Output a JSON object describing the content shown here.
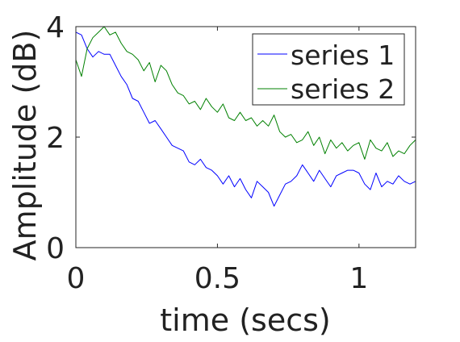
{
  "chart_data": {
    "type": "line",
    "title": "",
    "xlabel": "time (secs)",
    "ylabel": "Amplitude (dB)",
    "xlim": [
      0,
      1.2
    ],
    "ylim": [
      0,
      4
    ],
    "xticks": [
      0,
      0.5,
      1
    ],
    "xtick_labels": [
      "0",
      "0.5",
      "1"
    ],
    "yticks": [
      0,
      2,
      4
    ],
    "ytick_labels": [
      "0",
      "2",
      "4"
    ],
    "grid": false,
    "legend": {
      "placement": "top-right"
    },
    "series": [
      {
        "name": "series 1",
        "color": "#0000ff",
        "x": [
          0,
          0.02,
          0.04,
          0.06,
          0.08,
          0.1,
          0.12,
          0.14,
          0.16,
          0.18,
          0.2,
          0.22,
          0.24,
          0.26,
          0.28,
          0.3,
          0.32,
          0.34,
          0.36,
          0.38,
          0.4,
          0.42,
          0.44,
          0.46,
          0.48,
          0.5,
          0.52,
          0.54,
          0.56,
          0.58,
          0.6,
          0.62,
          0.64,
          0.66,
          0.68,
          0.7,
          0.72,
          0.74,
          0.76,
          0.78,
          0.8,
          0.82,
          0.84,
          0.86,
          0.88,
          0.9,
          0.92,
          0.94,
          0.96,
          0.98,
          1.0,
          1.02,
          1.04,
          1.06,
          1.08,
          1.1,
          1.12,
          1.14,
          1.16,
          1.18,
          1.2
        ],
        "y": [
          3.9,
          3.85,
          3.6,
          3.45,
          3.55,
          3.5,
          3.5,
          3.3,
          3.1,
          2.95,
          2.7,
          2.65,
          2.45,
          2.25,
          2.3,
          2.15,
          2.0,
          1.85,
          1.8,
          1.75,
          1.55,
          1.5,
          1.6,
          1.45,
          1.4,
          1.3,
          1.15,
          1.3,
          1.1,
          1.25,
          1.05,
          0.9,
          1.2,
          1.1,
          1.0,
          0.75,
          0.95,
          1.15,
          1.2,
          1.3,
          1.5,
          1.35,
          1.2,
          1.4,
          1.25,
          1.1,
          1.3,
          1.35,
          1.4,
          1.4,
          1.35,
          1.15,
          1.05,
          1.35,
          1.1,
          1.2,
          1.15,
          1.3,
          1.2,
          1.15,
          1.2
        ]
      },
      {
        "name": "series 2",
        "color": "#008000",
        "x": [
          0,
          0.02,
          0.04,
          0.06,
          0.08,
          0.1,
          0.12,
          0.14,
          0.16,
          0.18,
          0.2,
          0.22,
          0.24,
          0.26,
          0.28,
          0.3,
          0.32,
          0.34,
          0.36,
          0.38,
          0.4,
          0.42,
          0.44,
          0.46,
          0.48,
          0.5,
          0.52,
          0.54,
          0.56,
          0.58,
          0.6,
          0.62,
          0.64,
          0.66,
          0.68,
          0.7,
          0.72,
          0.74,
          0.76,
          0.78,
          0.8,
          0.82,
          0.84,
          0.86,
          0.88,
          0.9,
          0.92,
          0.94,
          0.96,
          0.98,
          1.0,
          1.02,
          1.04,
          1.06,
          1.08,
          1.1,
          1.12,
          1.14,
          1.16,
          1.18,
          1.2
        ],
        "y": [
          3.4,
          3.1,
          3.6,
          3.8,
          3.9,
          4.0,
          3.85,
          3.9,
          3.7,
          3.55,
          3.5,
          3.4,
          3.2,
          3.35,
          3.0,
          3.3,
          3.2,
          2.95,
          2.8,
          2.75,
          2.6,
          2.65,
          2.5,
          2.7,
          2.55,
          2.45,
          2.6,
          2.35,
          2.3,
          2.45,
          2.3,
          2.35,
          2.2,
          2.3,
          2.2,
          2.4,
          2.1,
          2.0,
          2.05,
          1.9,
          1.95,
          2.1,
          1.85,
          2.0,
          1.7,
          1.95,
          1.8,
          1.9,
          1.75,
          1.85,
          1.9,
          1.6,
          1.95,
          1.8,
          1.75,
          1.9,
          1.65,
          1.75,
          1.7,
          1.85,
          1.95
        ]
      }
    ]
  }
}
